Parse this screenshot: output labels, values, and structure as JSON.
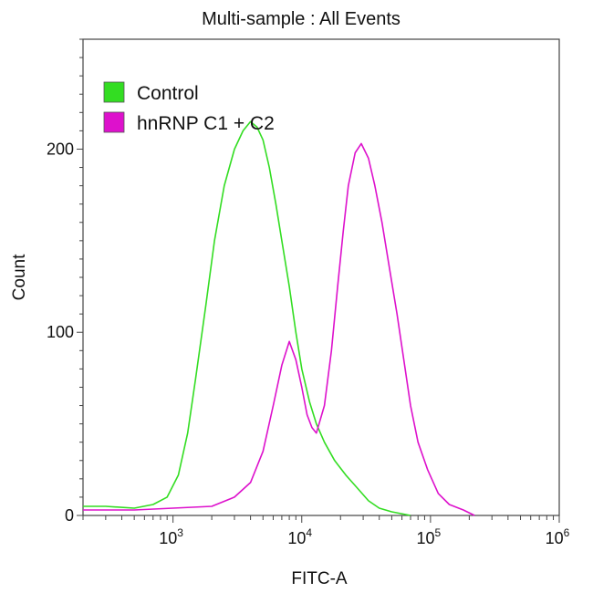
{
  "chart_data": {
    "type": "line",
    "title": "Multi-sample : All Events",
    "xlabel": "FITC-A",
    "ylabel": "Count",
    "x_scale": "log",
    "xlim": [
      200,
      1000000
    ],
    "ylim": [
      0,
      260
    ],
    "x_ticks": [
      {
        "base": "10",
        "exp": "3",
        "value": 1000
      },
      {
        "base": "10",
        "exp": "4",
        "value": 10000
      },
      {
        "base": "10",
        "exp": "5",
        "value": 100000
      },
      {
        "base": "10",
        "exp": "6",
        "value": 1000000
      }
    ],
    "y_ticks": [
      {
        "label": "0",
        "value": 0
      },
      {
        "label": "100",
        "value": 100
      },
      {
        "label": "200",
        "value": 200
      }
    ],
    "grid": false,
    "legend_position": "top-left",
    "series": [
      {
        "name": "Control",
        "color": "#33dd22",
        "points": [
          [
            200,
            5
          ],
          [
            300,
            5
          ],
          [
            500,
            4
          ],
          [
            700,
            6
          ],
          [
            900,
            10
          ],
          [
            1100,
            22
          ],
          [
            1300,
            45
          ],
          [
            1500,
            75
          ],
          [
            1800,
            115
          ],
          [
            2100,
            150
          ],
          [
            2500,
            180
          ],
          [
            3000,
            200
          ],
          [
            3500,
            210
          ],
          [
            4000,
            215
          ],
          [
            4500,
            212
          ],
          [
            5000,
            205
          ],
          [
            5600,
            190
          ],
          [
            6300,
            170
          ],
          [
            7000,
            150
          ],
          [
            8000,
            125
          ],
          [
            9000,
            100
          ],
          [
            10000,
            80
          ],
          [
            11500,
            62
          ],
          [
            13000,
            50
          ],
          [
            15000,
            40
          ],
          [
            18000,
            30
          ],
          [
            22000,
            22
          ],
          [
            27000,
            15
          ],
          [
            33000,
            8
          ],
          [
            40000,
            4
          ],
          [
            50000,
            2
          ],
          [
            70000,
            0
          ]
        ]
      },
      {
        "name": "hnRNP C1 + C2",
        "color": "#dd11cc",
        "points": [
          [
            200,
            3
          ],
          [
            500,
            3
          ],
          [
            1000,
            4
          ],
          [
            2000,
            5
          ],
          [
            3000,
            10
          ],
          [
            4000,
            18
          ],
          [
            5000,
            35
          ],
          [
            6000,
            60
          ],
          [
            7000,
            82
          ],
          [
            8000,
            95
          ],
          [
            9000,
            85
          ],
          [
            10000,
            70
          ],
          [
            11000,
            55
          ],
          [
            12000,
            48
          ],
          [
            13000,
            45
          ],
          [
            15000,
            60
          ],
          [
            17000,
            90
          ],
          [
            19000,
            125
          ],
          [
            21000,
            155
          ],
          [
            23000,
            180
          ],
          [
            26000,
            198
          ],
          [
            29000,
            203
          ],
          [
            33000,
            195
          ],
          [
            37000,
            180
          ],
          [
            42000,
            160
          ],
          [
            48000,
            135
          ],
          [
            55000,
            110
          ],
          [
            62000,
            85
          ],
          [
            70000,
            60
          ],
          [
            80000,
            40
          ],
          [
            95000,
            25
          ],
          [
            115000,
            12
          ],
          [
            140000,
            6
          ],
          [
            180000,
            3
          ],
          [
            220000,
            0
          ]
        ]
      }
    ]
  }
}
